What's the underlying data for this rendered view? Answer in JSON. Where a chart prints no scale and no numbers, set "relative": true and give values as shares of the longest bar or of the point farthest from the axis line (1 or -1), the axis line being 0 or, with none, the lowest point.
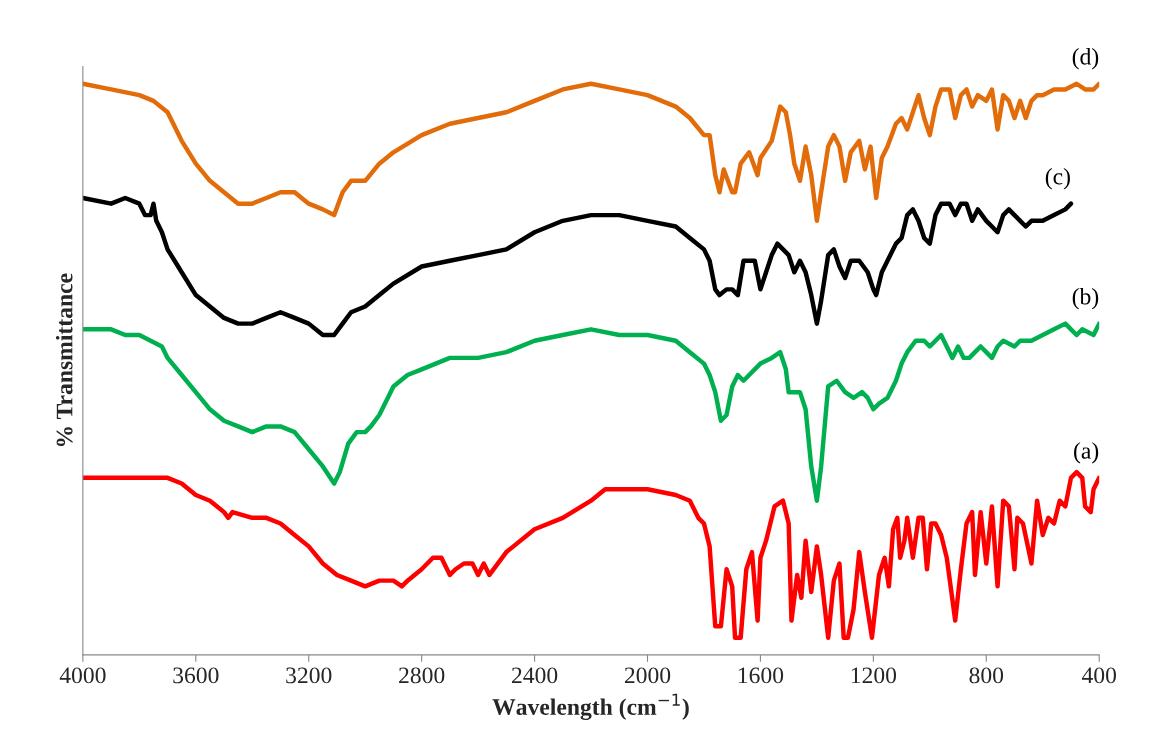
{
  "chart_data": {
    "type": "line",
    "relative": true,
    "xlabel": "Wavelength (cm$^{−1}$)",
    "ylabel": "% Transmittance",
    "xlim": [
      4000,
      400
    ],
    "xticks": [
      4000,
      3600,
      3200,
      2800,
      2400,
      2000,
      1600,
      1200,
      800,
      400
    ],
    "legend": false,
    "grid": false,
    "series": [
      {
        "name": "(a)",
        "color": "#ff0000",
        "x": [
          4000,
          3900,
          3800,
          3750,
          3700,
          3650,
          3600,
          3550,
          3500,
          3485,
          3470,
          3400,
          3350,
          3300,
          3250,
          3200,
          3150,
          3100,
          3050,
          3000,
          2950,
          2920,
          2900,
          2870,
          2850,
          2800,
          2760,
          2730,
          2700,
          2680,
          2650,
          2620,
          2600,
          2580,
          2560,
          2500,
          2400,
          2300,
          2200,
          2150,
          2100,
          2000,
          1900,
          1850,
          1820,
          1800,
          1780,
          1760,
          1740,
          1720,
          1700,
          1690,
          1670,
          1650,
          1630,
          1610,
          1600,
          1580,
          1550,
          1520,
          1500,
          1490,
          1470,
          1455,
          1440,
          1420,
          1400,
          1385,
          1360,
          1340,
          1320,
          1305,
          1290,
          1270,
          1250,
          1230,
          1205,
          1180,
          1160,
          1145,
          1130,
          1115,
          1105,
          1090,
          1080,
          1060,
          1040,
          1025,
          1010,
          995,
          980,
          960,
          940,
          910,
          890,
          870,
          850,
          840,
          820,
          800,
          780,
          760,
          740,
          720,
          700,
          690,
          670,
          640,
          620,
          600,
          580,
          560,
          540,
          520,
          500,
          480,
          460,
          450,
          430,
          420,
          400
        ],
        "values": [
          0.31,
          0.31,
          0.31,
          0.31,
          0.31,
          0.3,
          0.28,
          0.27,
          0.25,
          0.24,
          0.25,
          0.24,
          0.24,
          0.23,
          0.21,
          0.19,
          0.16,
          0.14,
          0.13,
          0.12,
          0.13,
          0.13,
          0.13,
          0.12,
          0.13,
          0.15,
          0.17,
          0.17,
          0.14,
          0.15,
          0.16,
          0.16,
          0.14,
          0.16,
          0.14,
          0.18,
          0.22,
          0.24,
          0.27,
          0.29,
          0.29,
          0.29,
          0.28,
          0.27,
          0.24,
          0.23,
          0.19,
          0.05,
          0.05,
          0.15,
          0.12,
          0.03,
          0.03,
          0.15,
          0.18,
          0.06,
          0.17,
          0.2,
          0.26,
          0.27,
          0.23,
          0.06,
          0.14,
          0.1,
          0.2,
          0.11,
          0.19,
          0.14,
          0.03,
          0.13,
          0.16,
          0.03,
          0.03,
          0.08,
          0.18,
          0.11,
          0.03,
          0.14,
          0.17,
          0.12,
          0.22,
          0.24,
          0.17,
          0.2,
          0.24,
          0.17,
          0.24,
          0.24,
          0.15,
          0.23,
          0.23,
          0.21,
          0.17,
          0.06,
          0.15,
          0.23,
          0.25,
          0.14,
          0.25,
          0.16,
          0.26,
          0.12,
          0.27,
          0.26,
          0.15,
          0.24,
          0.23,
          0.16,
          0.27,
          0.21,
          0.24,
          0.23,
          0.27,
          0.26,
          0.31,
          0.32,
          0.31,
          0.26,
          0.25,
          0.29,
          0.31
        ]
      },
      {
        "name": "(b)",
        "color": "#00b050",
        "x": [
          4000,
          3900,
          3850,
          3800,
          3760,
          3720,
          3700,
          3650,
          3600,
          3550,
          3500,
          3450,
          3400,
          3350,
          3300,
          3250,
          3200,
          3150,
          3110,
          3090,
          3060,
          3030,
          3000,
          2980,
          2950,
          2900,
          2850,
          2800,
          2700,
          2600,
          2500,
          2400,
          2300,
          2200,
          2100,
          2000,
          1900,
          1850,
          1800,
          1780,
          1760,
          1740,
          1720,
          1700,
          1680,
          1660,
          1640,
          1600,
          1560,
          1530,
          1510,
          1500,
          1460,
          1440,
          1420,
          1400,
          1385,
          1360,
          1330,
          1300,
          1270,
          1240,
          1220,
          1200,
          1180,
          1150,
          1120,
          1100,
          1080,
          1050,
          1020,
          1000,
          980,
          960,
          940,
          920,
          900,
          880,
          860,
          840,
          820,
          800,
          780,
          760,
          740,
          700,
          680,
          660,
          640,
          600,
          560,
          520,
          500,
          480,
          460,
          420,
          400
        ],
        "values": [
          0.57,
          0.57,
          0.56,
          0.56,
          0.55,
          0.54,
          0.52,
          0.49,
          0.46,
          0.43,
          0.41,
          0.4,
          0.39,
          0.4,
          0.4,
          0.39,
          0.36,
          0.33,
          0.3,
          0.32,
          0.37,
          0.39,
          0.39,
          0.4,
          0.42,
          0.47,
          0.49,
          0.5,
          0.52,
          0.52,
          0.53,
          0.55,
          0.56,
          0.57,
          0.56,
          0.56,
          0.55,
          0.53,
          0.51,
          0.49,
          0.46,
          0.41,
          0.42,
          0.47,
          0.49,
          0.48,
          0.49,
          0.51,
          0.52,
          0.53,
          0.5,
          0.46,
          0.46,
          0.43,
          0.33,
          0.27,
          0.33,
          0.47,
          0.48,
          0.46,
          0.45,
          0.46,
          0.45,
          0.43,
          0.44,
          0.45,
          0.48,
          0.51,
          0.53,
          0.55,
          0.55,
          0.54,
          0.55,
          0.56,
          0.54,
          0.52,
          0.54,
          0.52,
          0.52,
          0.53,
          0.54,
          0.53,
          0.52,
          0.54,
          0.55,
          0.54,
          0.55,
          0.55,
          0.55,
          0.56,
          0.57,
          0.58,
          0.57,
          0.56,
          0.57,
          0.56,
          0.58
        ]
      },
      {
        "name": "(c)",
        "color": "#000000",
        "x": [
          4000,
          3900,
          3850,
          3800,
          3780,
          3760,
          3750,
          3740,
          3720,
          3700,
          3650,
          3600,
          3550,
          3500,
          3450,
          3400,
          3350,
          3300,
          3250,
          3200,
          3150,
          3110,
          3080,
          3050,
          3000,
          2950,
          2900,
          2800,
          2700,
          2600,
          2500,
          2400,
          2300,
          2200,
          2100,
          2000,
          1900,
          1850,
          1800,
          1780,
          1760,
          1745,
          1720,
          1700,
          1680,
          1660,
          1640,
          1620,
          1600,
          1580,
          1560,
          1540,
          1500,
          1480,
          1460,
          1440,
          1420,
          1400,
          1385,
          1360,
          1340,
          1320,
          1300,
          1280,
          1250,
          1220,
          1200,
          1190,
          1170,
          1150,
          1120,
          1100,
          1080,
          1060,
          1040,
          1020,
          1000,
          980,
          960,
          930,
          910,
          890,
          870,
          850,
          830,
          800,
          780,
          760,
          740,
          720,
          700,
          680,
          660,
          640,
          600,
          560,
          520,
          500
        ],
        "values": [
          0.8,
          0.79,
          0.8,
          0.79,
          0.77,
          0.77,
          0.79,
          0.76,
          0.74,
          0.71,
          0.67,
          0.63,
          0.61,
          0.59,
          0.58,
          0.58,
          0.59,
          0.6,
          0.59,
          0.58,
          0.56,
          0.56,
          0.58,
          0.6,
          0.61,
          0.63,
          0.65,
          0.68,
          0.69,
          0.7,
          0.71,
          0.74,
          0.76,
          0.77,
          0.77,
          0.76,
          0.75,
          0.73,
          0.71,
          0.69,
          0.64,
          0.63,
          0.64,
          0.64,
          0.63,
          0.69,
          0.69,
          0.69,
          0.64,
          0.67,
          0.7,
          0.72,
          0.7,
          0.67,
          0.69,
          0.67,
          0.63,
          0.58,
          0.62,
          0.7,
          0.71,
          0.68,
          0.66,
          0.69,
          0.69,
          0.67,
          0.64,
          0.63,
          0.67,
          0.69,
          0.72,
          0.73,
          0.77,
          0.78,
          0.76,
          0.73,
          0.72,
          0.77,
          0.79,
          0.79,
          0.77,
          0.79,
          0.79,
          0.76,
          0.78,
          0.76,
          0.75,
          0.74,
          0.77,
          0.78,
          0.77,
          0.76,
          0.75,
          0.76,
          0.76,
          0.77,
          0.78,
          0.79
        ]
      },
      {
        "name": "(d)",
        "color": "#e36c0a",
        "x": [
          4000,
          3900,
          3800,
          3750,
          3700,
          3650,
          3600,
          3550,
          3500,
          3450,
          3400,
          3350,
          3300,
          3250,
          3200,
          3150,
          3110,
          3080,
          3050,
          3000,
          2950,
          2900,
          2800,
          2700,
          2600,
          2500,
          2400,
          2300,
          2200,
          2100,
          2000,
          1900,
          1850,
          1800,
          1780,
          1760,
          1745,
          1730,
          1700,
          1690,
          1670,
          1640,
          1610,
          1600,
          1560,
          1530,
          1510,
          1495,
          1480,
          1460,
          1440,
          1420,
          1400,
          1385,
          1360,
          1340,
          1320,
          1300,
          1280,
          1250,
          1230,
          1210,
          1190,
          1170,
          1150,
          1120,
          1100,
          1080,
          1060,
          1040,
          1020,
          1000,
          980,
          960,
          930,
          910,
          890,
          870,
          850,
          830,
          800,
          780,
          760,
          740,
          720,
          700,
          680,
          660,
          640,
          620,
          600,
          560,
          520,
          480,
          450,
          420,
          400
        ],
        "values": [
          1.0,
          0.99,
          0.98,
          0.97,
          0.95,
          0.9,
          0.86,
          0.83,
          0.81,
          0.79,
          0.79,
          0.8,
          0.81,
          0.81,
          0.79,
          0.78,
          0.77,
          0.81,
          0.83,
          0.83,
          0.86,
          0.88,
          0.91,
          0.93,
          0.94,
          0.95,
          0.97,
          0.99,
          1.0,
          0.99,
          0.98,
          0.96,
          0.94,
          0.91,
          0.91,
          0.84,
          0.81,
          0.85,
          0.81,
          0.81,
          0.86,
          0.88,
          0.84,
          0.87,
          0.9,
          0.96,
          0.95,
          0.91,
          0.86,
          0.83,
          0.89,
          0.84,
          0.76,
          0.81,
          0.89,
          0.91,
          0.89,
          0.83,
          0.88,
          0.9,
          0.85,
          0.89,
          0.8,
          0.87,
          0.89,
          0.93,
          0.94,
          0.92,
          0.95,
          0.98,
          0.94,
          0.91,
          0.96,
          0.99,
          0.99,
          0.94,
          0.98,
          0.99,
          0.96,
          0.98,
          0.97,
          0.99,
          0.92,
          0.98,
          0.97,
          0.94,
          0.97,
          0.94,
          0.97,
          0.98,
          0.98,
          0.99,
          0.99,
          1.0,
          0.99,
          0.99,
          1.0
        ]
      }
    ]
  }
}
